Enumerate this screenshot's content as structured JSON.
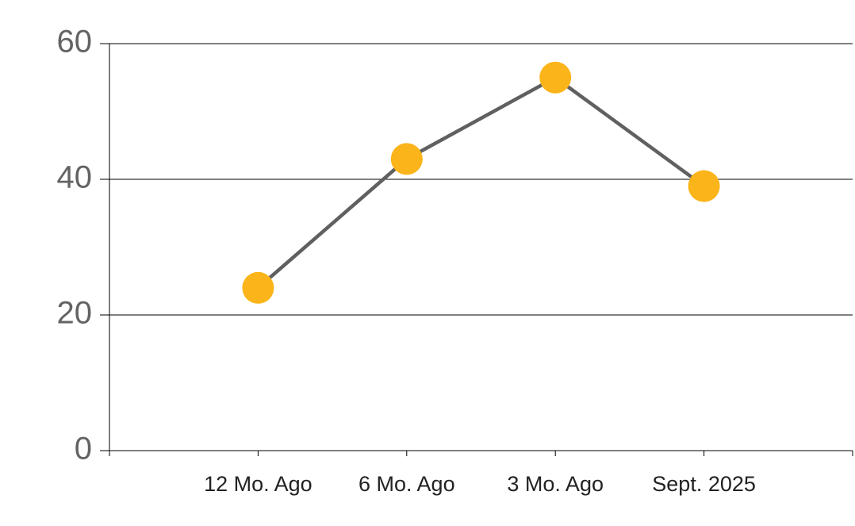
{
  "chart_data": {
    "type": "line",
    "categories": [
      "12 Mo. Ago",
      "6 Mo. Ago",
      "3 Mo. Ago",
      "Sept. 2025"
    ],
    "values": [
      24,
      43,
      55,
      39
    ],
    "line_color": "#606060",
    "marker_color": "#fbb419",
    "ylim": [
      0,
      60
    ],
    "yticks": [
      0,
      20,
      40,
      60
    ],
    "grid": true
  }
}
